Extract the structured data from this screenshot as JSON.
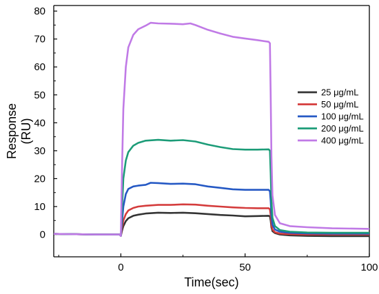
{
  "chart_data": {
    "type": "line",
    "xlabel": "Time(sec)",
    "ylabel": "Response\n(RU)",
    "xlim": [
      -27,
      100
    ],
    "ylim": [
      -8,
      82
    ],
    "x_ticks": [
      0,
      50,
      100
    ],
    "y_ticks": [
      0,
      10,
      20,
      30,
      40,
      50,
      60,
      70,
      80
    ],
    "grid": false,
    "legend_position": "right",
    "series": [
      {
        "name": "25 μg/mL",
        "color": "#333333",
        "points": [
          [
            -27,
            0.2
          ],
          [
            -10,
            0
          ],
          [
            -2,
            0
          ],
          [
            -0.5,
            0
          ],
          [
            0,
            -0.5
          ],
          [
            0.5,
            1.5
          ],
          [
            1,
            3
          ],
          [
            2,
            4.8
          ],
          [
            3,
            5.8
          ],
          [
            5,
            6.7
          ],
          [
            7,
            7.1
          ],
          [
            10,
            7.5
          ],
          [
            15,
            7.8
          ],
          [
            20,
            7.7
          ],
          [
            25,
            7.8
          ],
          [
            30,
            7.6
          ],
          [
            35,
            7.3
          ],
          [
            40,
            7.0
          ],
          [
            45,
            6.8
          ],
          [
            50,
            6.5
          ],
          [
            55,
            6.6
          ],
          [
            59.5,
            6.7
          ],
          [
            60,
            6.5
          ],
          [
            60.3,
            5
          ],
          [
            60.6,
            2.5
          ],
          [
            61,
            1.2
          ],
          [
            62,
            0.5
          ],
          [
            64,
            0
          ],
          [
            68,
            -0.3
          ],
          [
            75,
            -0.5
          ],
          [
            85,
            -0.6
          ],
          [
            100,
            -0.6
          ]
        ]
      },
      {
        "name": "50 μg/mL",
        "color": "#d43c3c",
        "points": [
          [
            -27,
            0.2
          ],
          [
            -10,
            0
          ],
          [
            -2,
            0
          ],
          [
            -0.5,
            0
          ],
          [
            0,
            -0.5
          ],
          [
            0.5,
            2.5
          ],
          [
            1,
            5
          ],
          [
            2,
            7.3
          ],
          [
            3,
            8.6
          ],
          [
            5,
            9.5
          ],
          [
            7,
            10
          ],
          [
            10,
            10.3
          ],
          [
            15,
            10.6
          ],
          [
            20,
            10.6
          ],
          [
            25,
            10.8
          ],
          [
            30,
            10.7
          ],
          [
            35,
            10.3
          ],
          [
            40,
            10.0
          ],
          [
            45,
            9.7
          ],
          [
            50,
            9.5
          ],
          [
            55,
            9.4
          ],
          [
            59.5,
            9.4
          ],
          [
            60,
            9.0
          ],
          [
            60.3,
            7
          ],
          [
            60.6,
            3.5
          ],
          [
            61,
            1.8
          ],
          [
            62,
            0.8
          ],
          [
            64,
            0.3
          ],
          [
            68,
            0.1
          ],
          [
            75,
            0
          ],
          [
            85,
            0
          ],
          [
            100,
            0
          ]
        ]
      },
      {
        "name": "100 μg/mL",
        "color": "#2458c4",
        "points": [
          [
            -27,
            0.2
          ],
          [
            -10,
            0
          ],
          [
            -2,
            0
          ],
          [
            -0.5,
            0
          ],
          [
            0,
            -0.5
          ],
          [
            0.5,
            5
          ],
          [
            1,
            10
          ],
          [
            2,
            14.5
          ],
          [
            3,
            16.3
          ],
          [
            5,
            17.2
          ],
          [
            7,
            17.5
          ],
          [
            10,
            17.8
          ],
          [
            12,
            18.5
          ],
          [
            15,
            18.4
          ],
          [
            20,
            18.1
          ],
          [
            25,
            18.2
          ],
          [
            30,
            18.0
          ],
          [
            35,
            17.2
          ],
          [
            40,
            16.7
          ],
          [
            45,
            16.2
          ],
          [
            50,
            16.0
          ],
          [
            55,
            16.0
          ],
          [
            59.5,
            16.0
          ],
          [
            60,
            15.5
          ],
          [
            60.3,
            12
          ],
          [
            60.6,
            7
          ],
          [
            61,
            3.5
          ],
          [
            62,
            1.8
          ],
          [
            64,
            1.0
          ],
          [
            68,
            0.6
          ],
          [
            75,
            0.4
          ],
          [
            85,
            0.3
          ],
          [
            100,
            0.3
          ]
        ]
      },
      {
        "name": "200 μg/mL",
        "color": "#1c9c78",
        "points": [
          [
            -27,
            0.2
          ],
          [
            -10,
            0
          ],
          [
            -2,
            0
          ],
          [
            -0.5,
            0
          ],
          [
            0,
            -0.5
          ],
          [
            0.5,
            10
          ],
          [
            1,
            20
          ],
          [
            2,
            26.5
          ],
          [
            3,
            29.5
          ],
          [
            5,
            31.8
          ],
          [
            7,
            32.8
          ],
          [
            10,
            33.6
          ],
          [
            15,
            33.9
          ],
          [
            20,
            33.6
          ],
          [
            25,
            33.8
          ],
          [
            30,
            33.3
          ],
          [
            35,
            32.2
          ],
          [
            40,
            31.3
          ],
          [
            45,
            30.6
          ],
          [
            50,
            30.4
          ],
          [
            55,
            30.4
          ],
          [
            59.5,
            30.5
          ],
          [
            60,
            30
          ],
          [
            60.3,
            22
          ],
          [
            60.6,
            12
          ],
          [
            61,
            6
          ],
          [
            62,
            3
          ],
          [
            64,
            1.6
          ],
          [
            68,
            1.0
          ],
          [
            75,
            0.7
          ],
          [
            85,
            0.6
          ],
          [
            100,
            0.6
          ]
        ]
      },
      {
        "name": "400 μg/mL",
        "color": "#c07ae6",
        "points": [
          [
            -27,
            0.2
          ],
          [
            -10,
            0
          ],
          [
            -2,
            0
          ],
          [
            -0.5,
            0
          ],
          [
            0,
            -0.5
          ],
          [
            0.5,
            25
          ],
          [
            1,
            45
          ],
          [
            2,
            60
          ],
          [
            3,
            67
          ],
          [
            5,
            71.5
          ],
          [
            7,
            73.5
          ],
          [
            10,
            74.8
          ],
          [
            12,
            75.8
          ],
          [
            15,
            75.6
          ],
          [
            20,
            75.5
          ],
          [
            25,
            75.3
          ],
          [
            28,
            75.6
          ],
          [
            30,
            75
          ],
          [
            35,
            73.3
          ],
          [
            40,
            72
          ],
          [
            45,
            70.8
          ],
          [
            50,
            70.2
          ],
          [
            55,
            69.6
          ],
          [
            59.5,
            69
          ],
          [
            60,
            68.5
          ],
          [
            60.3,
            50
          ],
          [
            60.6,
            28
          ],
          [
            61,
            14
          ],
          [
            62,
            7
          ],
          [
            64,
            4
          ],
          [
            68,
            3
          ],
          [
            75,
            2.6
          ],
          [
            85,
            2.2
          ],
          [
            100,
            2.0
          ]
        ]
      }
    ]
  }
}
